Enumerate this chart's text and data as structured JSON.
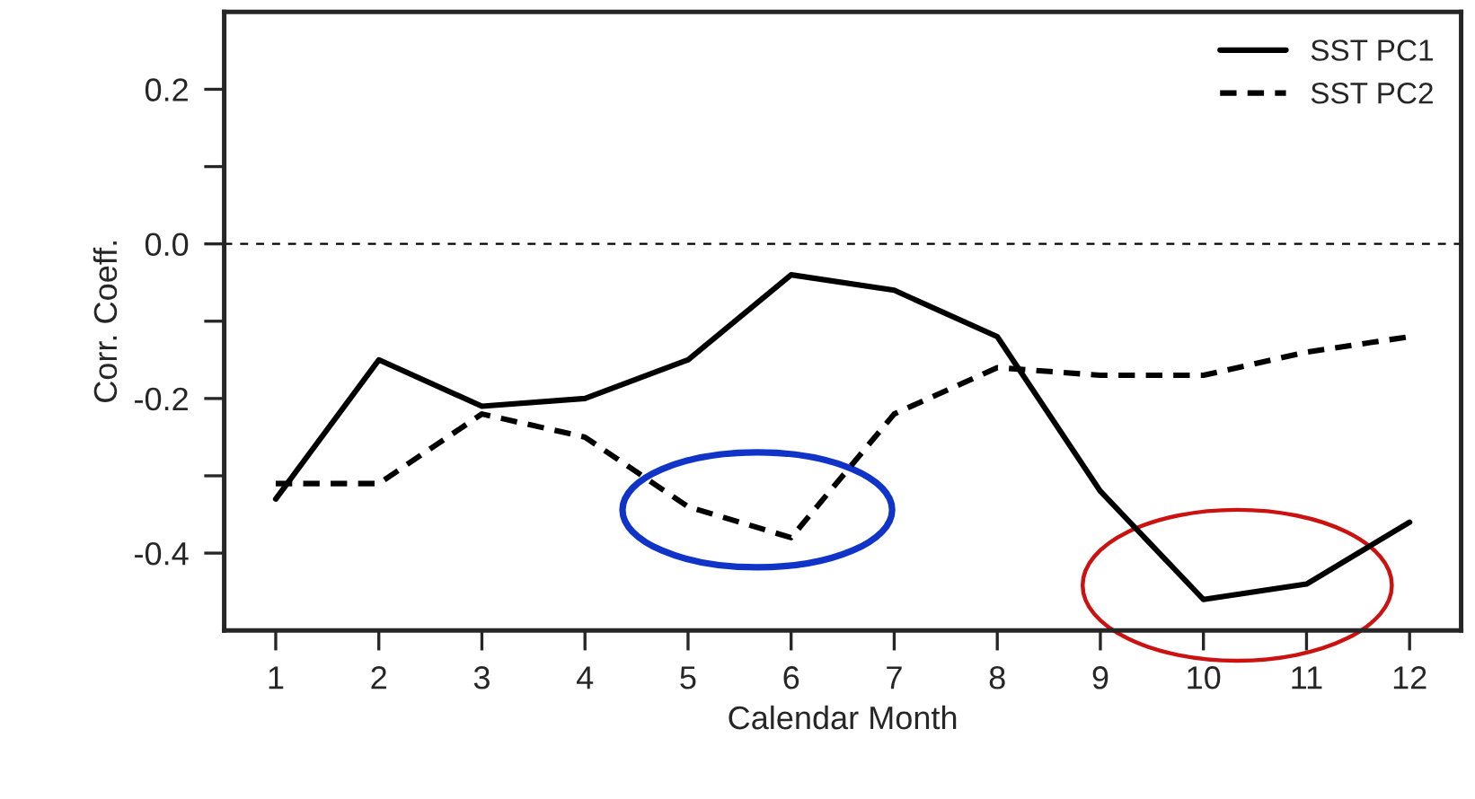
{
  "chart_data": {
    "type": "line",
    "xlabel": "Calendar Month",
    "ylabel": "Corr. Coeff.",
    "x": [
      1,
      2,
      3,
      4,
      5,
      6,
      7,
      8,
      9,
      10,
      11,
      12
    ],
    "series": [
      {
        "name": "SST PC1",
        "color": "#000000",
        "line_style": "solid",
        "values": [
          -0.33,
          -0.15,
          -0.21,
          -0.2,
          -0.15,
          -0.04,
          -0.06,
          -0.12,
          -0.32,
          -0.46,
          -0.44,
          -0.36
        ]
      },
      {
        "name": "SST PC2",
        "color": "#000000",
        "line_style": "dashed",
        "values": [
          -0.31,
          -0.31,
          -0.22,
          -0.25,
          -0.34,
          -0.38,
          -0.22,
          -0.16,
          -0.17,
          -0.17,
          -0.14,
          -0.12
        ]
      }
    ],
    "xlim": [
      0.5,
      12.5
    ],
    "xticks": [
      1,
      2,
      3,
      4,
      5,
      6,
      7,
      8,
      9,
      10,
      11,
      12
    ],
    "ylim": [
      -0.5,
      0.3
    ],
    "yticks": [
      {
        "value": -0.4,
        "label": "-0.4"
      },
      {
        "value": -0.3,
        "label": null
      },
      {
        "value": -0.2,
        "label": "-0.2"
      },
      {
        "value": -0.1,
        "label": null
      },
      {
        "value": 0.0,
        "label": "0.0"
      },
      {
        "value": 0.1,
        "label": null
      },
      0.2
    ],
    "ref_lines": [
      {
        "axis": "y",
        "value": 0,
        "line_style": "dashed",
        "color": "#000000"
      }
    ],
    "grid": false,
    "legend": "top right",
    "marker": "none"
  }
}
